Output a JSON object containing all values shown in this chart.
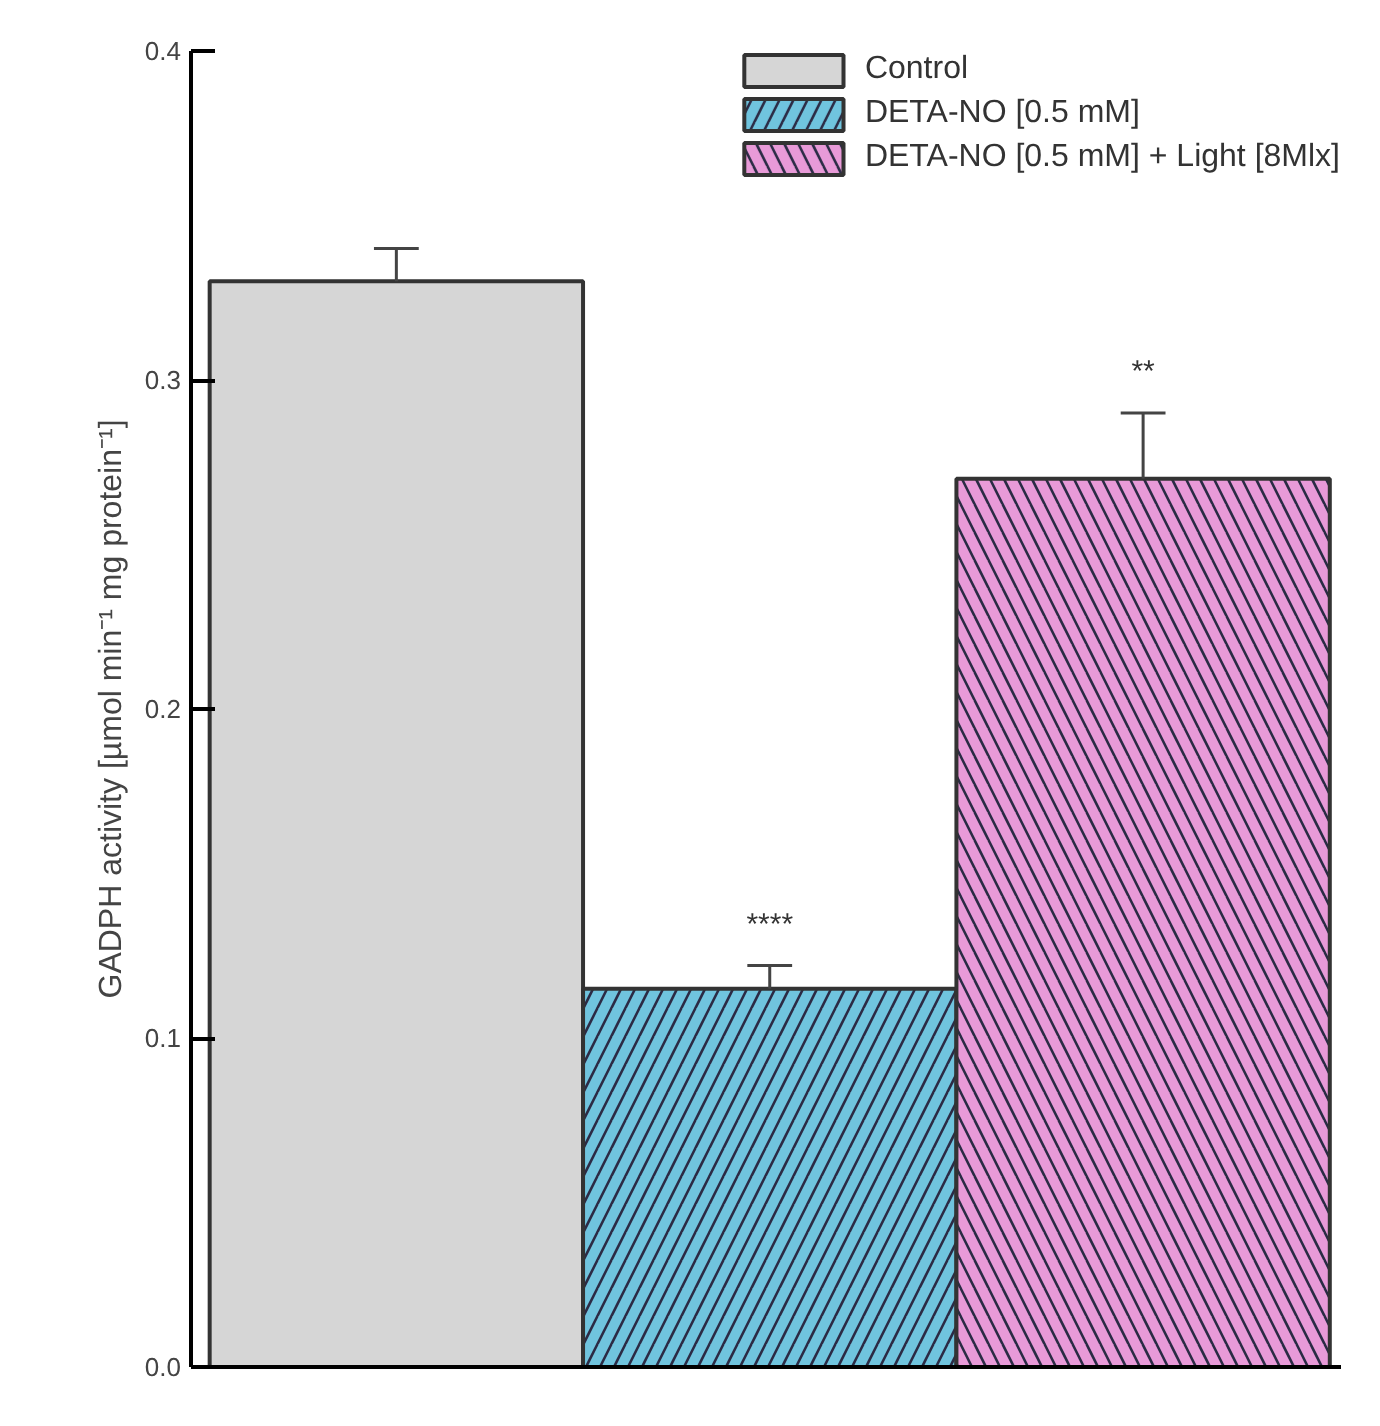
{
  "chart_data": {
    "type": "bar",
    "ylabel": "GADPH activity [µmol min⁻¹ mg protein⁻¹]",
    "categories": [
      null,
      null,
      null
    ],
    "series": [
      {
        "name": "Control",
        "color": "#d6d6d6",
        "values": [
          0.33,
          null,
          null
        ],
        "errors": [
          [
            0.33,
            0.34
          ],
          null,
          null
        ]
      },
      {
        "name": "DETA-NO [0.5 mM]",
        "color": "#70c4de",
        "values": [
          null,
          0.115,
          null
        ],
        "errors": [
          null,
          [
            0.115,
            0.122
          ],
          null
        ]
      },
      {
        "name": "DETA-NO [0.5 mM] + Light [8Mlx]",
        "color": "#e89ad8",
        "values": [
          null,
          null,
          0.27
        ],
        "errors": [
          null,
          null,
          [
            0.27,
            0.29
          ]
        ]
      }
    ],
    "ylim": [
      0,
      0.4
    ],
    "yticks": [
      {
        "value": 0,
        "label": "0.0"
      },
      0.1,
      0.2,
      0.3,
      0.4
    ],
    "annotations": [
      "****",
      "**"
    ],
    "tick_labels": "y",
    "legend": "top right",
    "grid": false
  }
}
